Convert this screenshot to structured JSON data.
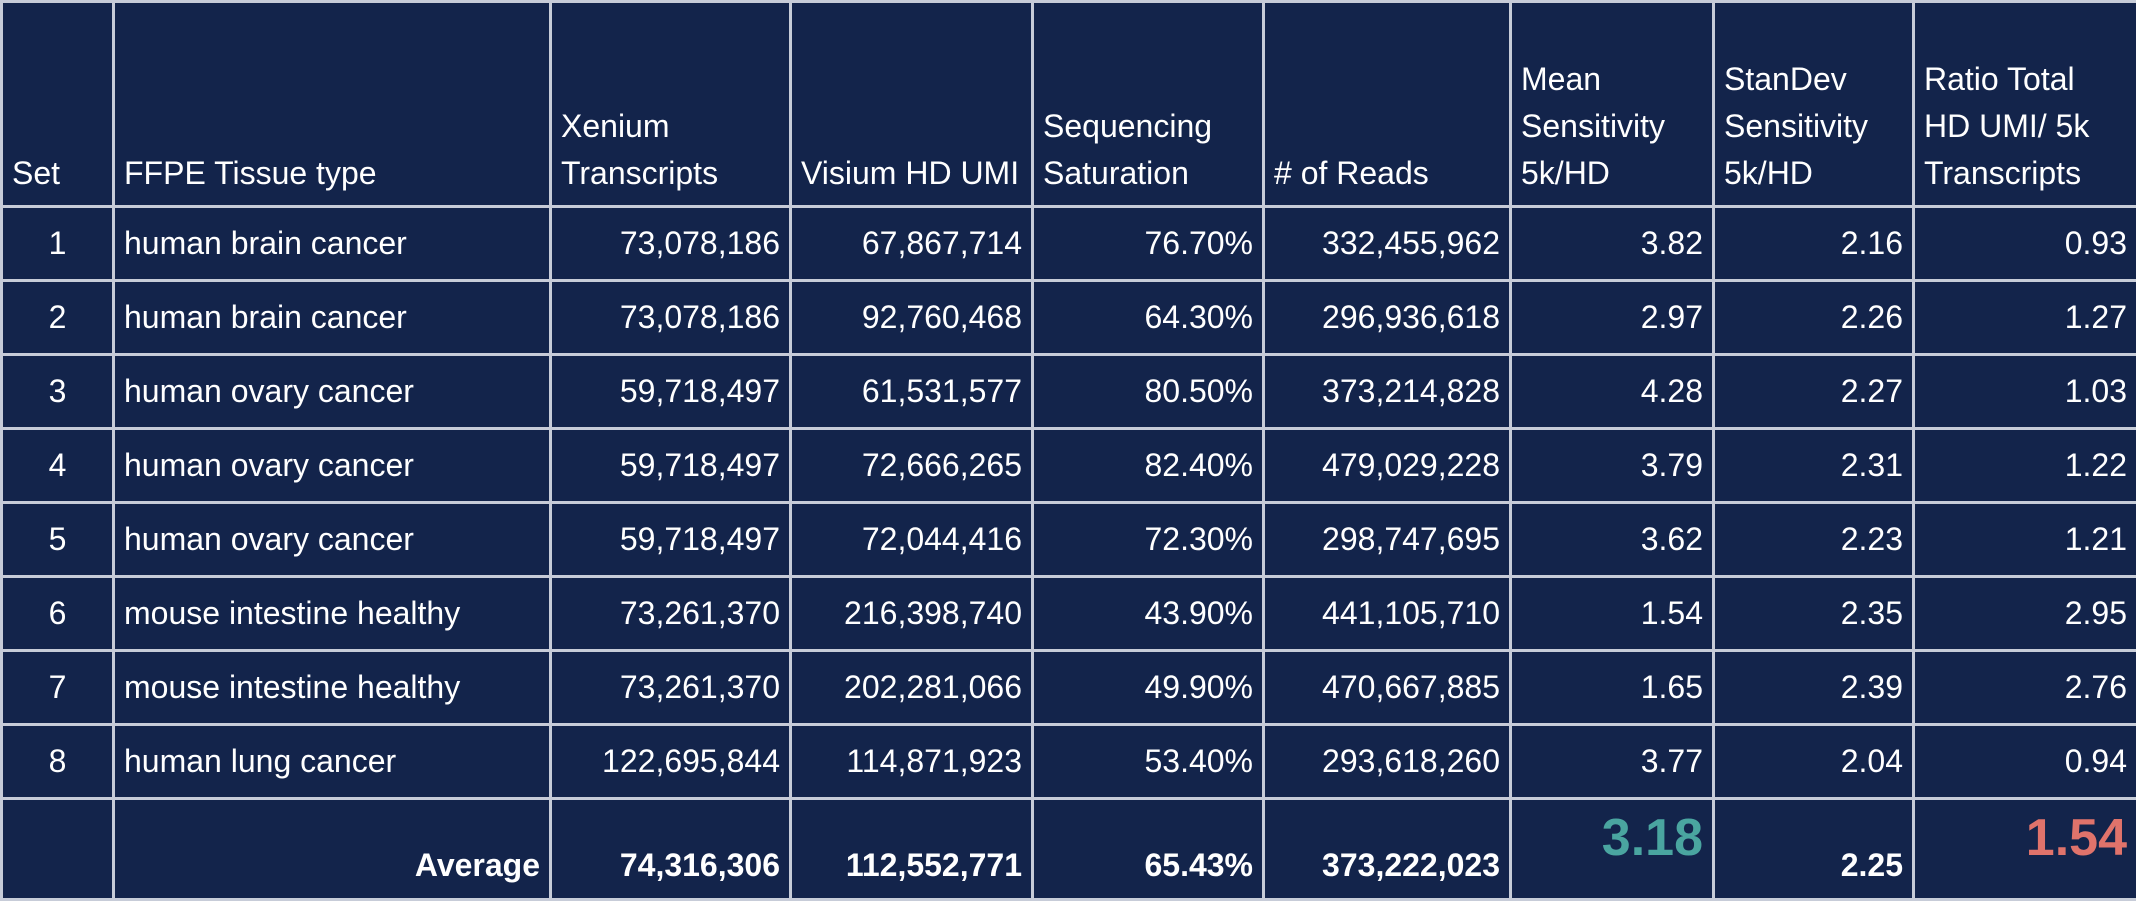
{
  "chart_data": {
    "type": "table",
    "columns": [
      "Set",
      "FFPE Tissue type",
      "Xenium Transcripts",
      "Visium HD UMI",
      "Sequencing Saturation",
      "# of Reads",
      "Mean Sensitivity 5k/HD",
      "StanDev Sensitivity 5k/HD",
      "Ratio Total HD UMI/ 5k Transcripts"
    ],
    "rows": [
      [
        "1",
        "human brain cancer",
        "73,078,186",
        "67,867,714",
        "76.70%",
        "332,455,962",
        "3.82",
        "2.16",
        "0.93"
      ],
      [
        "2",
        "human brain cancer",
        "73,078,186",
        "92,760,468",
        "64.30%",
        "296,936,618",
        "2.97",
        "2.26",
        "1.27"
      ],
      [
        "3",
        "human ovary cancer",
        "59,718,497",
        "61,531,577",
        "80.50%",
        "373,214,828",
        "4.28",
        "2.27",
        "1.03"
      ],
      [
        "4",
        "human ovary cancer",
        "59,718,497",
        "72,666,265",
        "82.40%",
        "479,029,228",
        "3.79",
        "2.31",
        "1.22"
      ],
      [
        "5",
        "human ovary cancer",
        "59,718,497",
        "72,044,416",
        "72.30%",
        "298,747,695",
        "3.62",
        "2.23",
        "1.21"
      ],
      [
        "6",
        "mouse intestine healthy",
        "73,261,370",
        "216,398,740",
        "43.90%",
        "441,105,710",
        "1.54",
        "2.35",
        "2.95"
      ],
      [
        "7",
        "mouse intestine healthy",
        "73,261,370",
        "202,281,066",
        "49.90%",
        "470,667,885",
        "1.65",
        "2.39",
        "2.76"
      ],
      [
        "8",
        "human lung cancer",
        "122,695,844",
        "114,871,923",
        "53.40%",
        "293,618,260",
        "3.77",
        "2.04",
        "0.94"
      ]
    ],
    "average": [
      "",
      "Average",
      "74,316,306",
      "112,552,771",
      "65.43%",
      "373,222,023",
      "3.18",
      "2.25",
      "1.54"
    ]
  },
  "colors": {
    "background": "#13244b",
    "grid": "#c7ccd8",
    "text": "#ffffff",
    "mean_sensitivity_highlight": "#4aa5a0",
    "ratio_highlight": "#e0736b"
  }
}
